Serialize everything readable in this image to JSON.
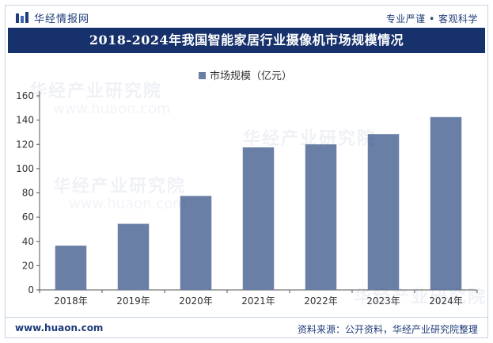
{
  "header": {
    "brand": "华经情报网",
    "tagline": "专业严谨 • 客观科学"
  },
  "title": "2018-2024年我国智能家居行业摄像机市场规模情况",
  "footer": {
    "url": "www.huaon.com",
    "source": "资料来源：公开资料，华经产业研究院整理"
  },
  "watermarks": {
    "brand": "华经产业研究院",
    "url": "www.huaon.com"
  },
  "colors": {
    "bar": "#6a7fa6",
    "header_bg": "#16316b",
    "brand": "#1f3b79"
  },
  "chart_data": {
    "type": "bar",
    "categories": [
      "2018年",
      "2019年",
      "2020年",
      "2021年",
      "2022年",
      "2023年",
      "2024年"
    ],
    "series": [
      {
        "name": "市场规模（亿元）",
        "values": [
          36.5,
          54.5,
          77.5,
          117.5,
          120,
          128.5,
          142.5
        ]
      }
    ],
    "ylim": [
      0,
      160
    ],
    "yticks": [
      0,
      20,
      40,
      60,
      80,
      100,
      120,
      140,
      160
    ],
    "legend_position": "top-center",
    "grid": false
  }
}
